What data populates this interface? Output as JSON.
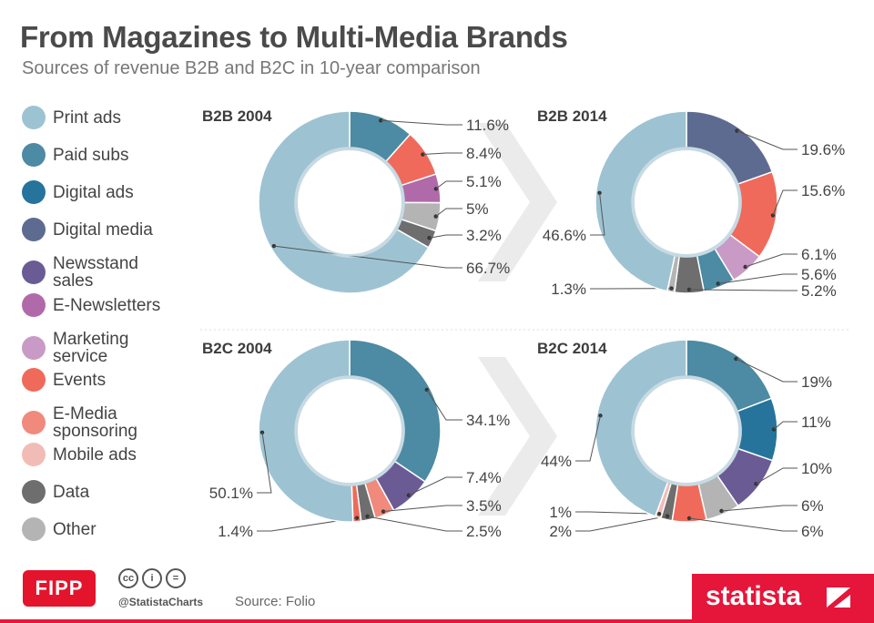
{
  "header": {
    "title": "From Magazines to Multi-Media Brands",
    "subtitle": "Sources of revenue B2B and B2C in 10-year comparison"
  },
  "legend": [
    {
      "label": "Print ads",
      "color": "#9dc3d3"
    },
    {
      "label": "Paid subs",
      "color": "#4d8aa3"
    },
    {
      "label": "Digital ads",
      "color": "#26739b"
    },
    {
      "label": "Digital media",
      "color": "#5e6b91"
    },
    {
      "label": "Newsstand\nsales",
      "color": "#6b5b95"
    },
    {
      "label": "E-Newsletters",
      "color": "#b06aa9"
    },
    {
      "label": "Marketing\nservice",
      "color": "#c99ac6"
    },
    {
      "label": "Events",
      "color": "#ef6a5a"
    },
    {
      "label": "E-Media\nsponsoring",
      "color": "#f08a7c"
    },
    {
      "label": "Mobile ads",
      "color": "#f2bcb6"
    },
    {
      "label": "Data",
      "color": "#6e6e6e"
    },
    {
      "label": "Other",
      "color": "#b4b4b4"
    }
  ],
  "chart_data": [
    {
      "type": "pie",
      "title": "B2B 2004",
      "slices": [
        {
          "category": "Paid subs",
          "value": 11.6,
          "label": "11.6%"
        },
        {
          "category": "Events",
          "value": 8.4,
          "label": "8.4%"
        },
        {
          "category": "E-Newsletters",
          "value": 5.1,
          "label": "5.1%"
        },
        {
          "category": "Other",
          "value": 5,
          "label": "5%"
        },
        {
          "category": "Data",
          "value": 3.2,
          "label": "3.2%"
        },
        {
          "category": "Print ads",
          "value": 66.7,
          "label": "66.7%"
        }
      ]
    },
    {
      "type": "pie",
      "title": "B2B 2014",
      "slices": [
        {
          "category": "Digital media",
          "value": 19.6,
          "label": "19.6%"
        },
        {
          "category": "Events",
          "value": 15.6,
          "label": "15.6%"
        },
        {
          "category": "Marketing service",
          "value": 6.1,
          "label": "6.1%"
        },
        {
          "category": "Paid subs",
          "value": 5.6,
          "label": "5.6%"
        },
        {
          "category": "Data",
          "value": 5.2,
          "label": "5.2%"
        },
        {
          "category": "Other",
          "value": 1.3,
          "label": "1.3%"
        },
        {
          "category": "Print ads",
          "value": 46.6,
          "label": "46.6%"
        }
      ]
    },
    {
      "type": "pie",
      "title": "B2C 2004",
      "slices": [
        {
          "category": "Paid subs",
          "value": 34.1,
          "label": "34.1%"
        },
        {
          "category": "Newsstand sales",
          "value": 7.4,
          "label": "7.4%"
        },
        {
          "category": "E-Media sponsoring",
          "value": 3.5,
          "label": "3.5%"
        },
        {
          "category": "Data",
          "value": 2.5,
          "label": "2.5%"
        },
        {
          "category": "Events",
          "value": 1.4,
          "label": "1.4%"
        },
        {
          "category": "Print ads",
          "value": 50.1,
          "label": "50.1%"
        }
      ]
    },
    {
      "type": "pie",
      "title": "B2C 2014",
      "slices": [
        {
          "category": "Paid subs",
          "value": 19,
          "label": "19%"
        },
        {
          "category": "Digital ads",
          "value": 11,
          "label": "11%"
        },
        {
          "category": "Newsstand sales",
          "value": 10,
          "label": "10%"
        },
        {
          "category": "Other",
          "value": 6,
          "label": "6%"
        },
        {
          "category": "Events",
          "value": 6,
          "label": "6%"
        },
        {
          "category": "Data",
          "value": 2,
          "label": "2%"
        },
        {
          "category": "Mobile ads",
          "value": 1,
          "label": "1%"
        },
        {
          "category": "Print ads",
          "value": 44,
          "label": "44%"
        }
      ]
    }
  ],
  "footer": {
    "brand": "FIPP",
    "license_icons": [
      "cc",
      "i",
      "="
    ],
    "handle": "@StatistaCharts",
    "source": "Source: Folio",
    "statista": "statista"
  }
}
